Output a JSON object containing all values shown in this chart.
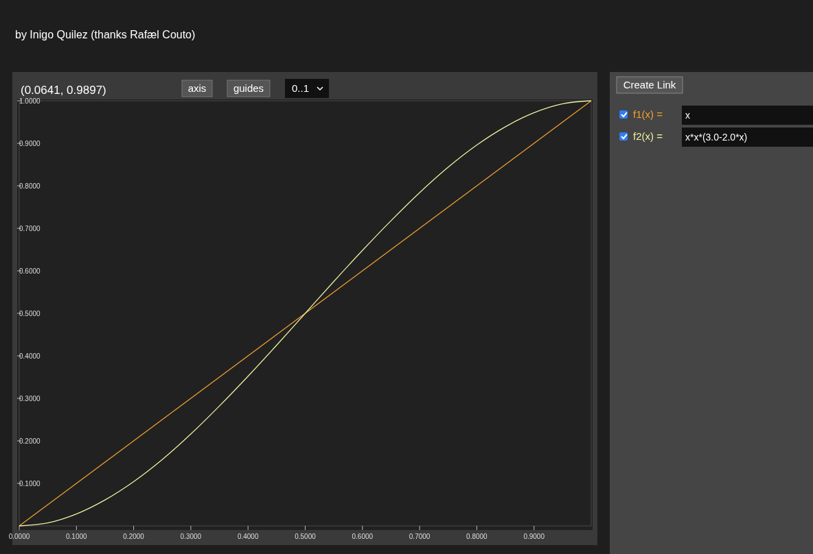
{
  "chart_data": {
    "type": "line",
    "title": "by Inigo Quilez (thanks Rafæl Couto)",
    "x": [
      0,
      0.05,
      0.1,
      0.15,
      0.2,
      0.25,
      0.3,
      0.35,
      0.4,
      0.45,
      0.5,
      0.55,
      0.6,
      0.65,
      0.7,
      0.75,
      0.8,
      0.85,
      0.9,
      0.95,
      1
    ],
    "series": [
      {
        "name": "f1(x) =",
        "color": "#f0a030",
        "values": [
          0,
          0.05,
          0.1,
          0.15,
          0.2,
          0.25,
          0.3,
          0.35,
          0.4,
          0.45,
          0.5,
          0.55,
          0.6,
          0.65,
          0.7,
          0.75,
          0.8,
          0.85,
          0.9,
          0.95,
          1
        ]
      },
      {
        "name": "f2(x) =",
        "color": "#eef0a0",
        "values": [
          0,
          0.007,
          0.028,
          0.061,
          0.104,
          0.156,
          0.216,
          0.282,
          0.352,
          0.425,
          0.5,
          0.575,
          0.648,
          0.718,
          0.784,
          0.844,
          0.896,
          0.939,
          0.972,
          0.993,
          1
        ]
      }
    ],
    "xlim": [
      0,
      1
    ],
    "ylim": [
      0,
      1
    ],
    "xticks": [
      {
        "value": 0,
        "label": "0.0000"
      },
      {
        "value": 0.1,
        "label": "0.1000"
      },
      {
        "value": 0.2,
        "label": "0.2000"
      },
      {
        "value": 0.3,
        "label": "0.3000"
      },
      {
        "value": 0.4,
        "label": "0.4000"
      },
      {
        "value": 0.5,
        "label": "0.5000"
      },
      {
        "value": 0.6,
        "label": "0.6000"
      },
      {
        "value": 0.7,
        "label": "0.7000"
      },
      {
        "value": 0.8,
        "label": "0.8000"
      },
      {
        "value": 0.9,
        "label": "0.9000"
      }
    ],
    "yticks": [
      {
        "value": 0.1,
        "label": "0.1000"
      },
      {
        "value": 0.2,
        "label": "0.2000"
      },
      {
        "value": 0.3,
        "label": "0.3000"
      },
      {
        "value": 0.4,
        "label": "0.4000"
      },
      {
        "value": 0.5,
        "label": "0.5000"
      },
      {
        "value": 0.6,
        "label": "0.6000"
      },
      {
        "value": 0.7,
        "label": "0.7000"
      },
      {
        "value": 0.8,
        "label": "0.8000"
      },
      {
        "value": 0.9,
        "label": "0.9000"
      },
      {
        "value": 1,
        "label": "1.0000"
      }
    ],
    "legend": "right",
    "line_style": "solid",
    "marker": "none",
    "annotations": [
      "(0.0641, 0.9897)",
      "axis",
      "guides",
      "0..1",
      "Create Link",
      "x",
      "x*x*(3.0-2.0*x)"
    ]
  }
}
